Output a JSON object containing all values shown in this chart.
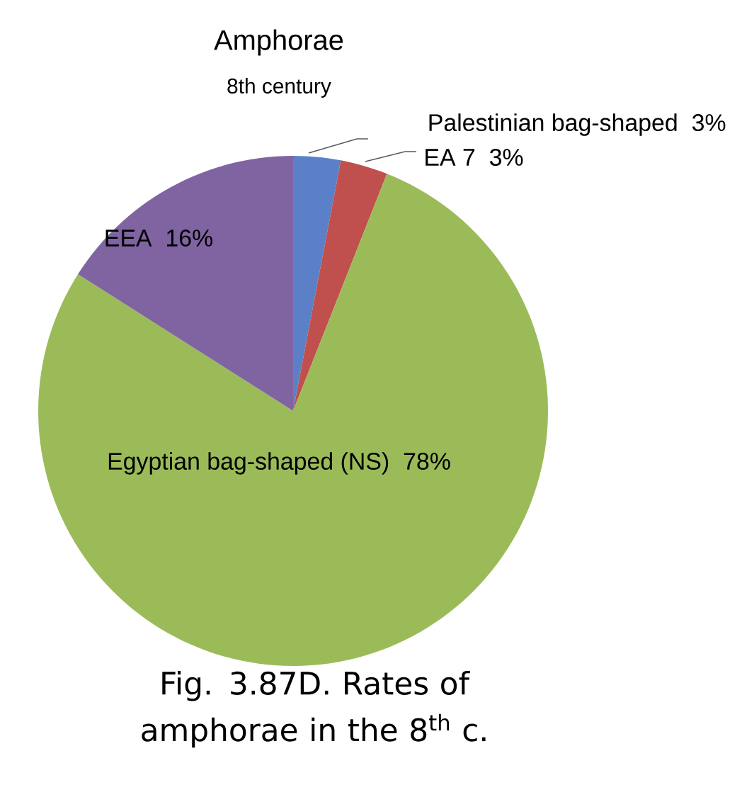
{
  "chart_data": {
    "type": "pie",
    "title": "Amphorae",
    "subtitle": "8th century",
    "categories": [
      "Palestinian bag-shaped",
      "EA 7",
      "Egyptian bag-shaped (NS)",
      "EEA"
    ],
    "values": [
      3,
      3,
      78,
      16
    ],
    "value_labels": [
      "3%",
      "3%",
      "78%",
      "16%"
    ],
    "colors": [
      "#5b80c8",
      "#c0504d",
      "#9bbb59",
      "#8064a2"
    ],
    "annotations": [
      "Fig. 3.87D. Rates of amphorae in the 8$^{th}$ c."
    ]
  }
}
